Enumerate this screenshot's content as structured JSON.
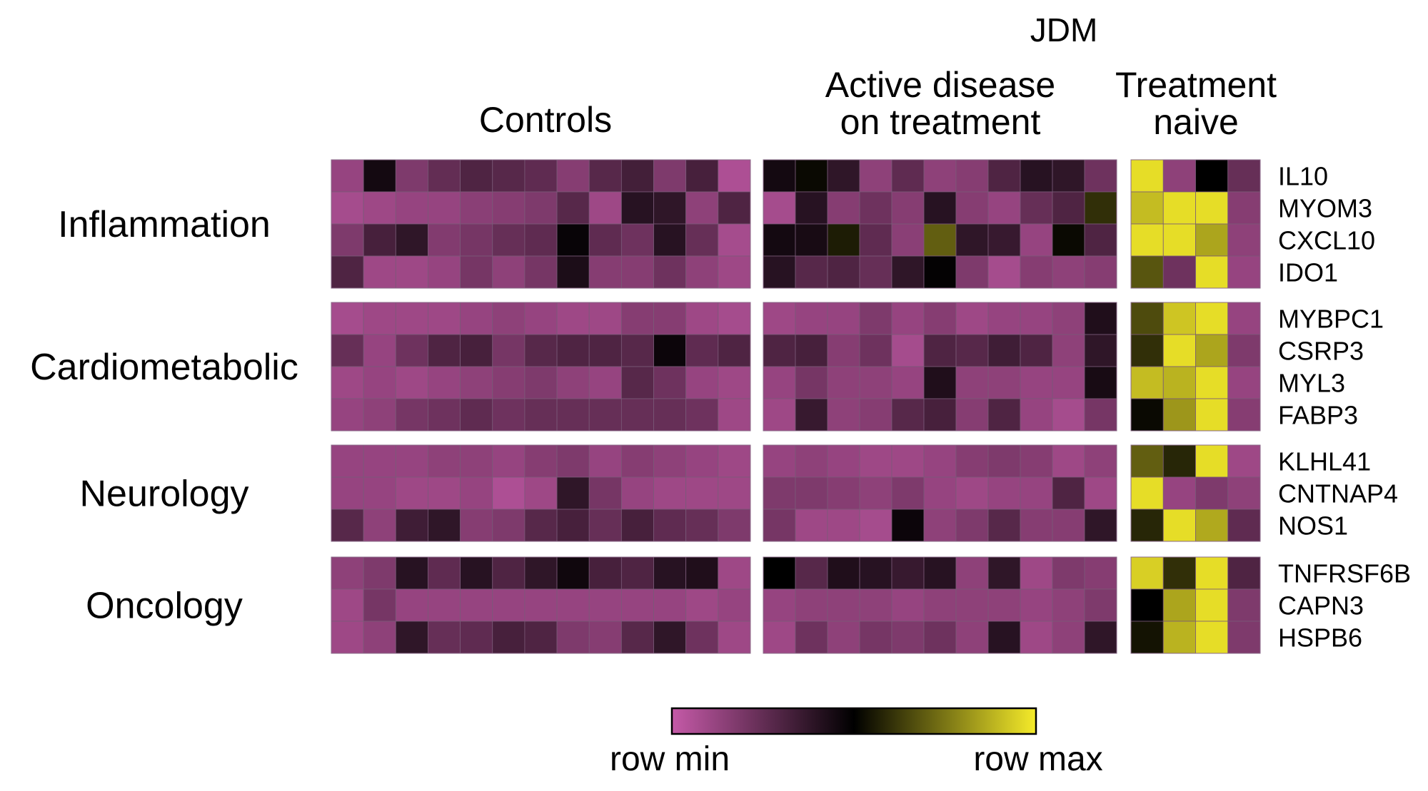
{
  "chart_data": {
    "type": "heatmap",
    "header": {
      "jdm": "JDM",
      "controls": "Controls",
      "active": [
        "Active disease",
        "on treatment"
      ],
      "naive": [
        "Treatment",
        "naive"
      ]
    },
    "groups": [
      {
        "name": "Inflammation",
        "genes": [
          "IL10",
          "MYOM3",
          "CXCL10",
          "IDO1"
        ],
        "controls": [
          [
            0.12,
            0.45,
            0.18,
            0.25,
            0.3,
            0.28,
            0.26,
            0.16,
            0.28,
            0.33,
            0.18,
            0.32,
            0.06
          ],
          [
            0.08,
            0.1,
            0.12,
            0.12,
            0.15,
            0.16,
            0.18,
            0.28,
            0.1,
            0.4,
            0.38,
            0.14,
            0.3
          ],
          [
            0.18,
            0.32,
            0.38,
            0.17,
            0.2,
            0.24,
            0.26,
            0.48,
            0.26,
            0.22,
            0.4,
            0.24,
            0.08
          ],
          [
            0.3,
            0.1,
            0.1,
            0.12,
            0.2,
            0.14,
            0.2,
            0.43,
            0.16,
            0.16,
            0.22,
            0.14,
            0.1
          ]
        ],
        "active": [
          [
            0.45,
            0.52,
            0.38,
            0.14,
            0.26,
            0.14,
            0.16,
            0.3,
            0.4,
            0.38,
            0.22
          ],
          [
            0.08,
            0.4,
            0.16,
            0.22,
            0.16,
            0.4,
            0.16,
            0.12,
            0.24,
            0.3,
            0.6
          ],
          [
            0.45,
            0.44,
            0.56,
            0.26,
            0.15,
            0.7,
            0.38,
            0.36,
            0.12,
            0.52,
            0.3
          ],
          [
            0.4,
            0.28,
            0.3,
            0.24,
            0.38,
            0.49,
            0.18,
            0.08,
            0.16,
            0.14,
            0.16
          ]
        ],
        "naive": [
          [
            0.97,
            0.14,
            0.5,
            0.24
          ],
          [
            0.9,
            0.97,
            0.97,
            0.16
          ],
          [
            0.97,
            0.97,
            0.85,
            0.14
          ],
          [
            0.68,
            0.22,
            0.97,
            0.12
          ]
        ]
      },
      {
        "name": "Cardiometabolic",
        "genes": [
          "MYBPC1",
          "CSRP3",
          "MYL3",
          "FABP3"
        ],
        "controls": [
          [
            0.08,
            0.1,
            0.1,
            0.1,
            0.12,
            0.14,
            0.12,
            0.1,
            0.1,
            0.16,
            0.16,
            0.1,
            0.08
          ],
          [
            0.24,
            0.12,
            0.22,
            0.3,
            0.32,
            0.2,
            0.28,
            0.3,
            0.3,
            0.28,
            0.47,
            0.26,
            0.3
          ],
          [
            0.1,
            0.12,
            0.1,
            0.12,
            0.14,
            0.16,
            0.18,
            0.14,
            0.12,
            0.28,
            0.22,
            0.12,
            0.1
          ],
          [
            0.12,
            0.14,
            0.2,
            0.22,
            0.26,
            0.22,
            0.24,
            0.24,
            0.24,
            0.24,
            0.24,
            0.22,
            0.1
          ]
        ],
        "active": [
          [
            0.1,
            0.12,
            0.12,
            0.18,
            0.12,
            0.16,
            0.1,
            0.12,
            0.12,
            0.14,
            0.42
          ],
          [
            0.3,
            0.32,
            0.16,
            0.22,
            0.08,
            0.3,
            0.28,
            0.34,
            0.3,
            0.14,
            0.38
          ],
          [
            0.12,
            0.2,
            0.14,
            0.14,
            0.12,
            0.42,
            0.14,
            0.14,
            0.12,
            0.12,
            0.44
          ],
          [
            0.1,
            0.36,
            0.14,
            0.16,
            0.28,
            0.32,
            0.16,
            0.3,
            0.12,
            0.08,
            0.2
          ]
        ],
        "naive": [
          [
            0.66,
            0.92,
            0.97,
            0.12
          ],
          [
            0.6,
            0.97,
            0.85,
            0.18
          ],
          [
            0.9,
            0.88,
            0.97,
            0.12
          ],
          [
            0.52,
            0.82,
            0.97,
            0.16
          ]
        ]
      },
      {
        "name": "Neurology",
        "genes": [
          "KLHL41",
          "CNTNAP4",
          "NOS1"
        ],
        "controls": [
          [
            0.12,
            0.12,
            0.12,
            0.14,
            0.14,
            0.12,
            0.16,
            0.18,
            0.12,
            0.16,
            0.14,
            0.12,
            0.1
          ],
          [
            0.12,
            0.12,
            0.1,
            0.1,
            0.12,
            0.06,
            0.1,
            0.38,
            0.2,
            0.12,
            0.1,
            0.1,
            0.1
          ],
          [
            0.28,
            0.14,
            0.34,
            0.38,
            0.16,
            0.18,
            0.28,
            0.32,
            0.24,
            0.32,
            0.26,
            0.24,
            0.18
          ]
        ],
        "active": [
          [
            0.12,
            0.14,
            0.12,
            0.1,
            0.1,
            0.12,
            0.16,
            0.18,
            0.16,
            0.1,
            0.14
          ],
          [
            0.18,
            0.18,
            0.16,
            0.14,
            0.18,
            0.12,
            0.1,
            0.12,
            0.12,
            0.3,
            0.1
          ],
          [
            0.2,
            0.1,
            0.1,
            0.08,
            0.47,
            0.14,
            0.18,
            0.28,
            0.16,
            0.16,
            0.38
          ]
        ],
        "naive": [
          [
            0.7,
            0.58,
            0.97,
            0.1
          ],
          [
            0.97,
            0.12,
            0.18,
            0.14
          ],
          [
            0.58,
            0.97,
            0.86,
            0.26
          ]
        ]
      },
      {
        "name": "Oncology",
        "genes": [
          "TNFRSF6B",
          "CAPN3",
          "HSPB6"
        ],
        "controls": [
          [
            0.14,
            0.18,
            0.4,
            0.26,
            0.4,
            0.3,
            0.38,
            0.46,
            0.32,
            0.3,
            0.4,
            0.42,
            0.1
          ],
          [
            0.1,
            0.2,
            0.12,
            0.12,
            0.12,
            0.12,
            0.12,
            0.12,
            0.12,
            0.12,
            0.12,
            0.1,
            0.12
          ],
          [
            0.1,
            0.14,
            0.38,
            0.24,
            0.26,
            0.32,
            0.3,
            0.18,
            0.16,
            0.28,
            0.38,
            0.22,
            0.1
          ]
        ],
        "active": [
          [
            0.5,
            0.28,
            0.42,
            0.4,
            0.36,
            0.4,
            0.14,
            0.38,
            0.1,
            0.18,
            0.16
          ],
          [
            0.12,
            0.14,
            0.14,
            0.14,
            0.12,
            0.14,
            0.14,
            0.14,
            0.12,
            0.14,
            0.18
          ],
          [
            0.1,
            0.22,
            0.14,
            0.2,
            0.18,
            0.22,
            0.14,
            0.4,
            0.1,
            0.14,
            0.38
          ]
        ],
        "naive": [
          [
            0.94,
            0.6,
            0.97,
            0.3
          ],
          [
            0.5,
            0.85,
            0.97,
            0.18
          ],
          [
            0.54,
            0.88,
            0.97,
            0.18
          ]
        ]
      }
    ],
    "colorscale": {
      "min_label": "row min",
      "max_label": "row max",
      "stops": [
        "#c55aa8",
        "#000000",
        "#f5eb2a"
      ]
    }
  }
}
